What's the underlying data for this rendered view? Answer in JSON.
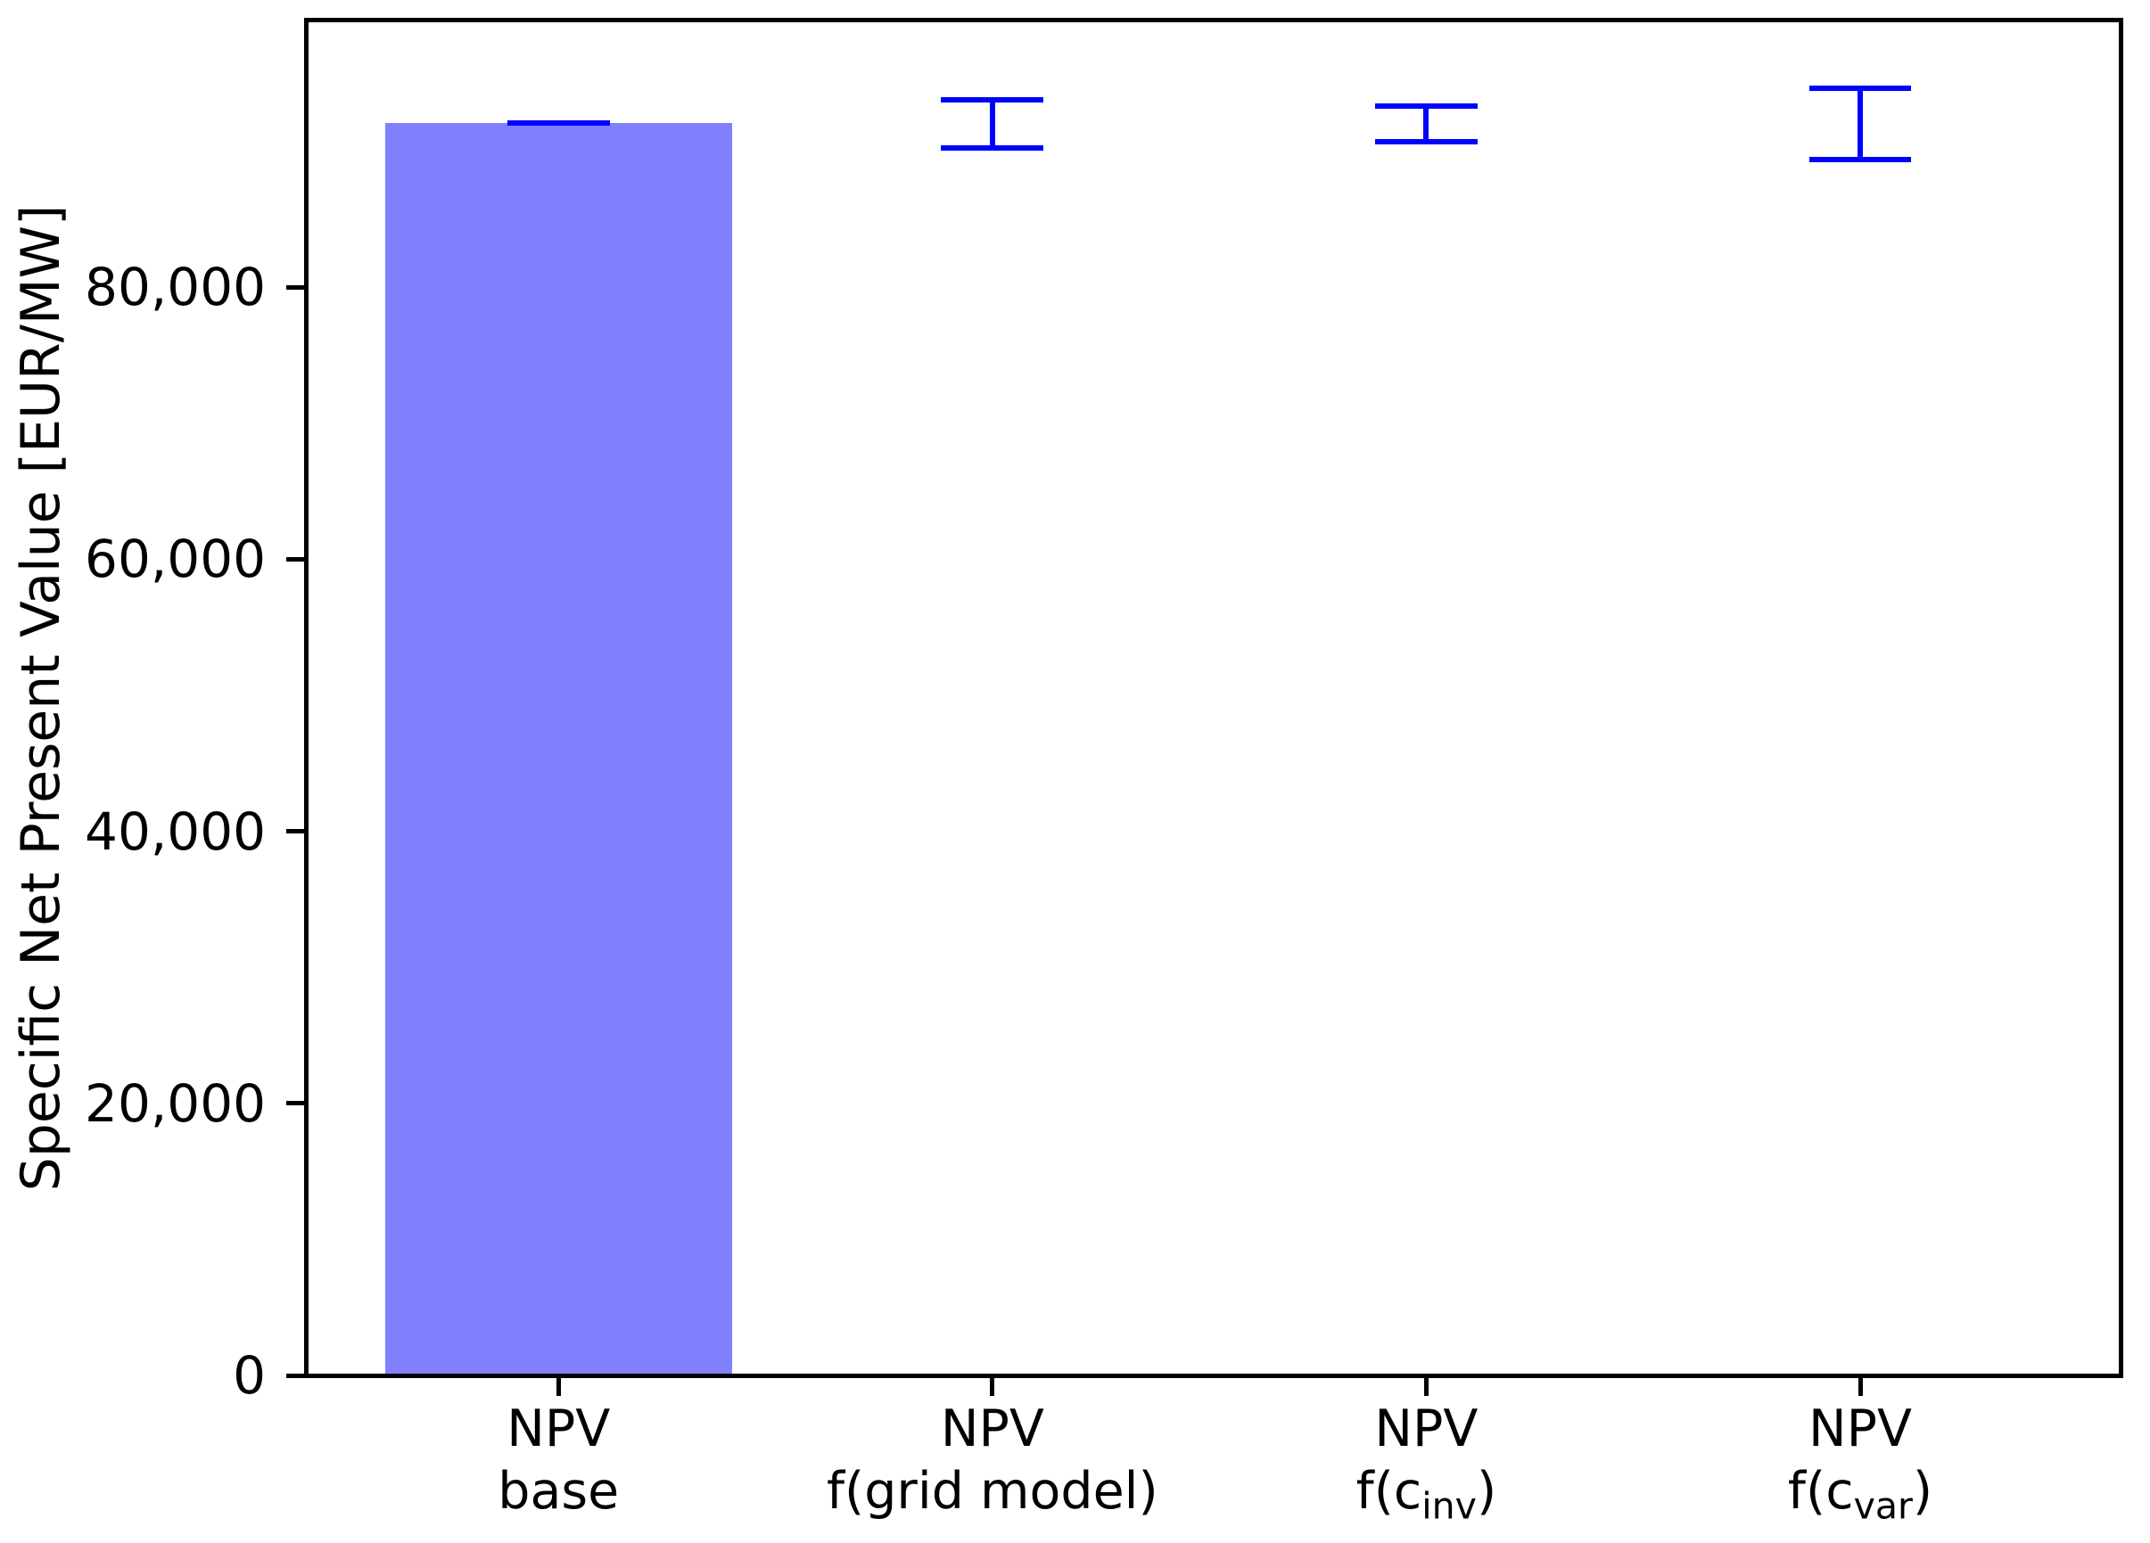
{
  "figure": {
    "background": "#ffffff"
  },
  "chart_data": {
    "type": "bar",
    "title": "",
    "xlabel": "",
    "ylabel": "Specific Net Present Value [EUR/MW]",
    "grid": false,
    "legend_position": "none",
    "axis_color": "#000000",
    "bar_color": "#8080ff",
    "error_color": "#0000ff",
    "ylim": [
      0,
      99600
    ],
    "xlim": [
      -0.58,
      3.6
    ],
    "bar_width": 0.8,
    "cap_width": 0.236,
    "yticks": [
      {
        "value": 0,
        "label": "0"
      },
      {
        "value": 20000,
        "label": "20,000"
      },
      {
        "value": 40000,
        "label": "40,000"
      },
      {
        "value": 60000,
        "label": "60,000"
      },
      {
        "value": 80000,
        "label": "80,000"
      }
    ],
    "categories": [
      {
        "x": 0,
        "line1": "NPV",
        "line2_pre": "base",
        "line2_sub": "",
        "line2_post": "",
        "bar_value": 92050,
        "err_center": 92050,
        "err": 0
      },
      {
        "x": 1,
        "line1": "NPV",
        "line2_pre": "f(grid model)",
        "line2_sub": "",
        "line2_post": "",
        "bar_value": null,
        "err_center": 92000,
        "err": 1750
      },
      {
        "x": 2,
        "line1": "NPV",
        "line2_pre": "f(c",
        "line2_sub": "inv",
        "line2_post": ")",
        "bar_value": null,
        "err_center": 92000,
        "err": 1300
      },
      {
        "x": 3,
        "line1": "NPV",
        "line2_pre": "f(c",
        "line2_sub": "var",
        "line2_post": ")",
        "bar_value": null,
        "err_center": 92000,
        "err": 2650
      }
    ]
  }
}
